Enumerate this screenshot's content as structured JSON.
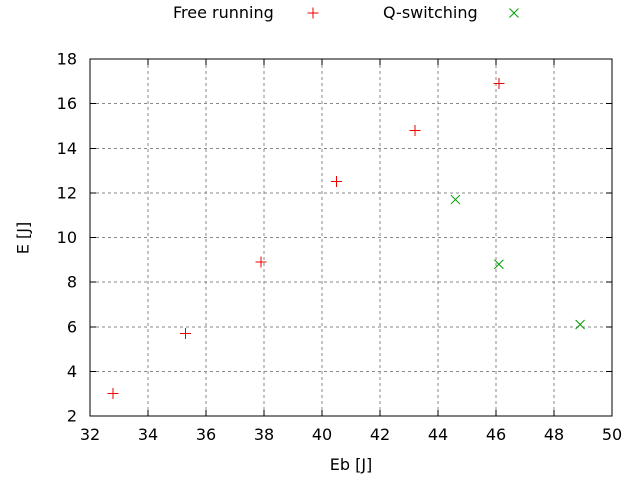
{
  "window": {
    "background": "#ffffff"
  },
  "chart_data": {
    "type": "scatter",
    "title": "",
    "xlabel": "Eb [J]",
    "ylabel": "E [J]",
    "xlim": [
      32,
      50
    ],
    "ylim": [
      2,
      18
    ],
    "x_ticks": [
      32,
      34,
      36,
      38,
      40,
      42,
      44,
      46,
      48,
      50
    ],
    "y_ticks": [
      2,
      4,
      6,
      8,
      10,
      12,
      14,
      16,
      18
    ],
    "grid": true,
    "grid_style": "dashed",
    "legend_position": "top-center-outside",
    "axis_color": "#000000",
    "grid_color": "#8a8a8a",
    "series": [
      {
        "name": "Free running",
        "marker": "plus",
        "color": "#ee0000",
        "points": [
          [
            32.8,
            3.0
          ],
          [
            35.3,
            5.7
          ],
          [
            37.9,
            8.9
          ],
          [
            40.5,
            12.5
          ],
          [
            43.2,
            14.8
          ],
          [
            46.1,
            16.9
          ]
        ]
      },
      {
        "name": "Q-switching",
        "marker": "cross",
        "color": "#00a000",
        "points": [
          [
            44.6,
            11.7
          ],
          [
            46.1,
            8.8
          ],
          [
            48.9,
            6.1
          ]
        ]
      }
    ]
  }
}
